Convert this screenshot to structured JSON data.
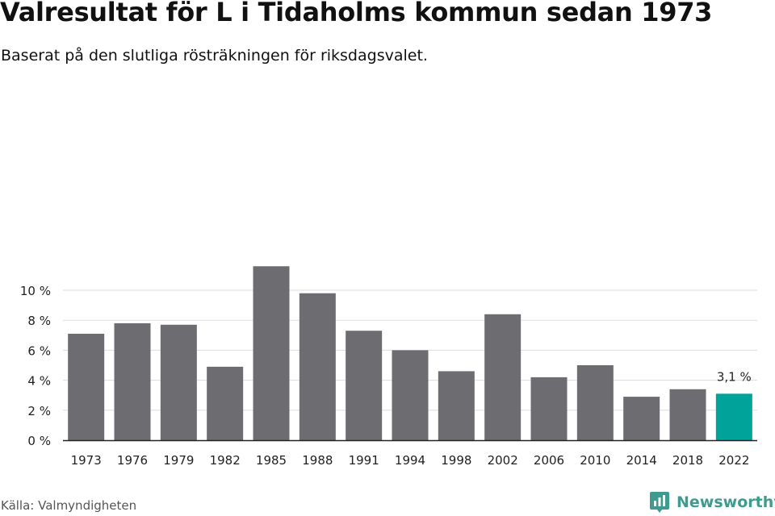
{
  "title": "Valresultat för L i Tidaholms kommun sedan 1973",
  "subtitle": "Baserat på den slutliga rösträkningen för riksdagsvalet.",
  "source": "Källa: Valmyndigheten",
  "brand": {
    "name": "Newsworthy",
    "icon": "newsworthy-logo-icon",
    "color": "#3f9a8f"
  },
  "colors": {
    "bar": "#6d6c71",
    "highlight": "#00a39a",
    "grid": "#dddddd",
    "axis": "#222222"
  },
  "chart_data": {
    "type": "bar",
    "categories": [
      "1973",
      "1976",
      "1979",
      "1982",
      "1985",
      "1988",
      "1991",
      "1994",
      "1998",
      "2002",
      "2006",
      "2010",
      "2014",
      "2018",
      "2022"
    ],
    "values": [
      7.1,
      7.8,
      7.7,
      4.9,
      11.6,
      9.8,
      7.3,
      6.0,
      4.6,
      8.4,
      4.2,
      5.0,
      2.9,
      3.4,
      3.1
    ],
    "yticks": [
      "0 %",
      "2 %",
      "4 %",
      "6 %",
      "8 %",
      "10 %"
    ],
    "ylim": [
      0,
      12
    ],
    "grid": true,
    "highlight_index": 14,
    "annotations": [
      {
        "category": "2022",
        "label": "3,1 %"
      }
    ],
    "xlabel": "",
    "ylabel": ""
  }
}
